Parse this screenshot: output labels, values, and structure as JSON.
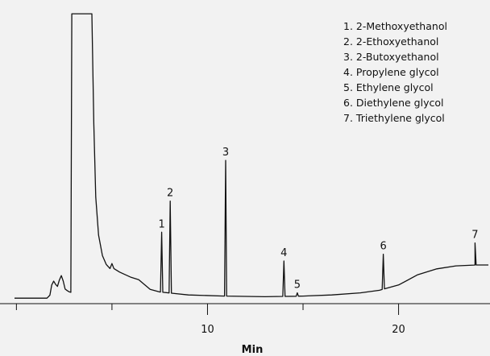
{
  "chart_data": {
    "type": "line",
    "xlabel": "Min",
    "ylabel": "",
    "xlim": [
      -0.1,
      24.7
    ],
    "ylim": [
      0,
      100
    ],
    "x_ticks": [
      10,
      20
    ],
    "x_ticks_minor": [
      0,
      5,
      15
    ],
    "grid": false,
    "legend_placement": "top-right",
    "legend": [
      "1.  2-Methoxyethanol",
      "2.  2-Ethoxyethanol",
      "3.  2-Butoxyethanol",
      "4.  Propylene glycol",
      "5.  Ethylene glycol",
      "6.  Diethylene glycol",
      "7.  Triethylene glycol"
    ],
    "peaks": [
      {
        "label": "1",
        "x": 7.6,
        "y": 23.0
      },
      {
        "label": "2",
        "x": 8.05,
        "y": 33.6
      },
      {
        "label": "3",
        "x": 10.95,
        "y": 47.5
      },
      {
        "label": "4",
        "x": 14.0,
        "y": 13.2
      },
      {
        "label": "5",
        "x": 14.7,
        "y": 2.3
      },
      {
        "label": "6",
        "x": 19.2,
        "y": 15.5
      },
      {
        "label": "7",
        "x": 24.0,
        "y": 19.3
      }
    ],
    "series": [
      {
        "values": [
          [
            -0.1,
            0.5
          ],
          [
            1.6,
            0.5
          ],
          [
            1.75,
            1.5
          ],
          [
            1.85,
            5.0
          ],
          [
            1.95,
            6.3
          ],
          [
            2.05,
            5.2
          ],
          [
            2.15,
            4.5
          ],
          [
            2.25,
            6.7
          ],
          [
            2.35,
            8.2
          ],
          [
            2.45,
            6.3
          ],
          [
            2.55,
            3.6
          ],
          [
            2.65,
            3.1
          ],
          [
            2.75,
            2.7
          ],
          [
            2.85,
            2.5
          ],
          [
            2.9,
            97.5
          ],
          [
            3.95,
            97.5
          ],
          [
            4.05,
            60.0
          ],
          [
            4.15,
            35.0
          ],
          [
            4.3,
            22.0
          ],
          [
            4.5,
            15.0
          ],
          [
            4.7,
            12.0
          ],
          [
            4.9,
            10.6
          ],
          [
            5.0,
            12.3
          ],
          [
            5.1,
            10.6
          ],
          [
            5.4,
            9.4
          ],
          [
            6.0,
            7.6
          ],
          [
            6.4,
            6.8
          ],
          [
            7.0,
            3.5
          ],
          [
            7.5,
            2.6
          ],
          [
            9.0,
            1.6
          ],
          [
            11.0,
            1.2
          ],
          [
            13.0,
            1.0
          ],
          [
            15.0,
            1.2
          ],
          [
            16.5,
            1.6
          ],
          [
            18.0,
            2.3
          ],
          [
            19.0,
            3.2
          ],
          [
            20.0,
            5.0
          ],
          [
            21.0,
            8.5
          ],
          [
            22.0,
            10.5
          ],
          [
            23.0,
            11.5
          ],
          [
            24.0,
            11.8
          ],
          [
            24.7,
            11.8
          ]
        ]
      }
    ]
  }
}
